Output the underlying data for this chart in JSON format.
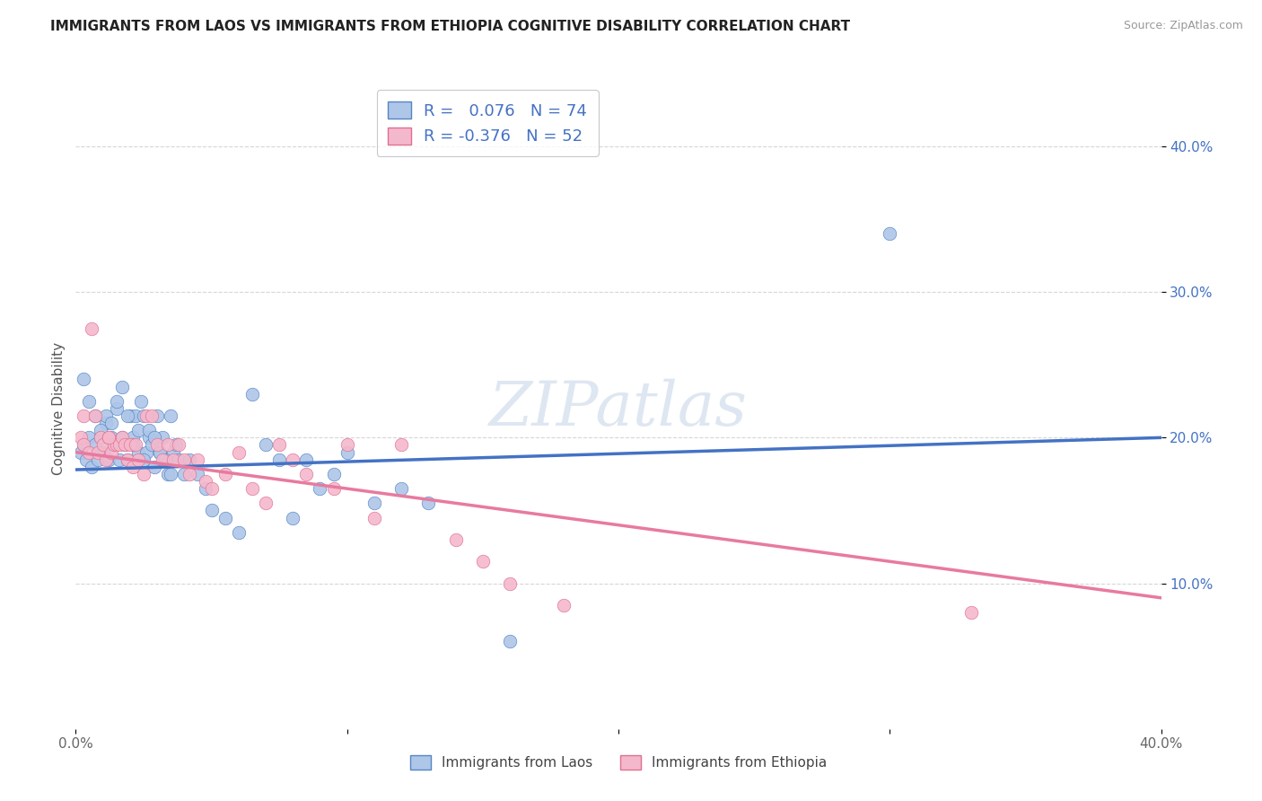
{
  "title": "IMMIGRANTS FROM LAOS VS IMMIGRANTS FROM ETHIOPIA COGNITIVE DISABILITY CORRELATION CHART",
  "source": "Source: ZipAtlas.com",
  "ylabel": "Cognitive Disability",
  "x_min": 0.0,
  "x_max": 0.4,
  "y_min": 0.0,
  "y_max": 0.44,
  "laos_color": "#aec6e8",
  "ethiopia_color": "#f4b8cc",
  "laos_edge_color": "#5585c5",
  "ethiopia_edge_color": "#e07090",
  "laos_line_color": "#4472C4",
  "ethiopia_line_color": "#E87A9F",
  "laos_R": 0.076,
  "laos_N": 74,
  "ethiopia_R": -0.376,
  "ethiopia_N": 52,
  "watermark": "ZIPatlas",
  "laos_line_y0": 0.178,
  "laos_line_y1": 0.2,
  "ethiopia_line_y0": 0.19,
  "ethiopia_line_y1": 0.09,
  "laos_x": [
    0.002,
    0.003,
    0.004,
    0.005,
    0.006,
    0.007,
    0.008,
    0.009,
    0.01,
    0.011,
    0.012,
    0.013,
    0.014,
    0.015,
    0.016,
    0.017,
    0.018,
    0.019,
    0.02,
    0.021,
    0.022,
    0.023,
    0.024,
    0.025,
    0.026,
    0.027,
    0.028,
    0.029,
    0.03,
    0.031,
    0.032,
    0.033,
    0.034,
    0.035,
    0.036,
    0.038,
    0.04,
    0.042,
    0.045,
    0.048,
    0.05,
    0.055,
    0.06,
    0.065,
    0.07,
    0.075,
    0.08,
    0.085,
    0.09,
    0.095,
    0.1,
    0.11,
    0.12,
    0.13,
    0.003,
    0.005,
    0.007,
    0.009,
    0.011,
    0.013,
    0.015,
    0.017,
    0.019,
    0.021,
    0.023,
    0.025,
    0.027,
    0.029,
    0.031,
    0.033,
    0.035,
    0.037,
    0.16,
    0.3
  ],
  "laos_y": [
    0.19,
    0.195,
    0.185,
    0.2,
    0.18,
    0.195,
    0.185,
    0.2,
    0.19,
    0.21,
    0.185,
    0.2,
    0.195,
    0.22,
    0.185,
    0.2,
    0.195,
    0.185,
    0.215,
    0.2,
    0.215,
    0.19,
    0.225,
    0.215,
    0.19,
    0.2,
    0.195,
    0.18,
    0.215,
    0.19,
    0.2,
    0.185,
    0.175,
    0.215,
    0.19,
    0.185,
    0.175,
    0.185,
    0.175,
    0.165,
    0.15,
    0.145,
    0.135,
    0.23,
    0.195,
    0.185,
    0.145,
    0.185,
    0.165,
    0.175,
    0.19,
    0.155,
    0.165,
    0.155,
    0.24,
    0.225,
    0.215,
    0.205,
    0.215,
    0.21,
    0.225,
    0.235,
    0.215,
    0.195,
    0.205,
    0.185,
    0.205,
    0.2,
    0.19,
    0.185,
    0.175,
    0.195,
    0.06,
    0.34
  ],
  "ethiopia_x": [
    0.002,
    0.003,
    0.005,
    0.006,
    0.008,
    0.009,
    0.01,
    0.011,
    0.012,
    0.013,
    0.014,
    0.015,
    0.016,
    0.017,
    0.018,
    0.019,
    0.02,
    0.021,
    0.022,
    0.023,
    0.025,
    0.026,
    0.028,
    0.03,
    0.032,
    0.034,
    0.036,
    0.038,
    0.04,
    0.042,
    0.045,
    0.048,
    0.05,
    0.055,
    0.06,
    0.065,
    0.07,
    0.075,
    0.08,
    0.085,
    0.095,
    0.1,
    0.11,
    0.12,
    0.14,
    0.15,
    0.16,
    0.18,
    0.003,
    0.007,
    0.012,
    0.33
  ],
  "ethiopia_y": [
    0.2,
    0.195,
    0.19,
    0.275,
    0.19,
    0.2,
    0.195,
    0.185,
    0.2,
    0.19,
    0.195,
    0.195,
    0.195,
    0.2,
    0.195,
    0.185,
    0.195,
    0.18,
    0.195,
    0.185,
    0.175,
    0.215,
    0.215,
    0.195,
    0.185,
    0.195,
    0.185,
    0.195,
    0.185,
    0.175,
    0.185,
    0.17,
    0.165,
    0.175,
    0.19,
    0.165,
    0.155,
    0.195,
    0.185,
    0.175,
    0.165,
    0.195,
    0.145,
    0.195,
    0.13,
    0.115,
    0.1,
    0.085,
    0.215,
    0.215,
    0.2,
    0.08
  ]
}
